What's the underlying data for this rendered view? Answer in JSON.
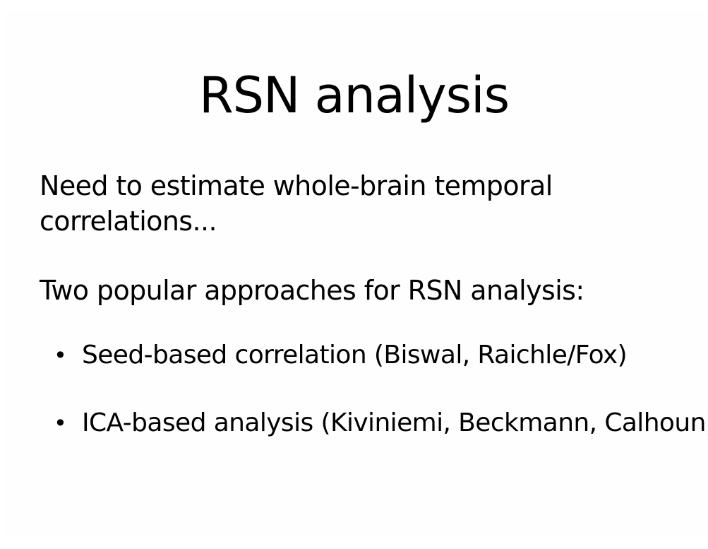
{
  "slide": {
    "title": "RSN analysis",
    "paragraph_1_line_1": "Need to estimate whole-brain temporal",
    "paragraph_1_line_2": "correlations...",
    "paragraph_2": "Two popular approaches for RSN analysis:",
    "bullet_glyph": "•",
    "bullets": [
      "Seed-based correlation (Biswal, Raichle/Fox)",
      "ICA-based analysis (Kiviniemi, Beckmann, Calhoun)"
    ]
  }
}
